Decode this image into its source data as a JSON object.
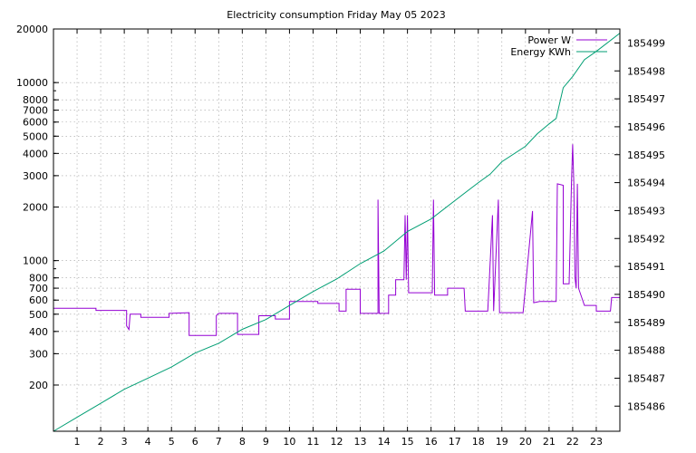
{
  "chart_data": {
    "type": "line",
    "title": "Electricity consumption Friday May 05 2023",
    "xlim": [
      0,
      24
    ],
    "x_ticks": [
      1,
      2,
      3,
      4,
      5,
      6,
      7,
      8,
      9,
      10,
      11,
      12,
      13,
      14,
      15,
      16,
      17,
      18,
      19,
      20,
      21,
      22,
      23
    ],
    "y_left": {
      "scale": "log",
      "range": [
        110,
        20000
      ],
      "ticks": [
        200,
        300,
        400,
        500,
        600,
        700,
        800,
        1000,
        2000,
        3000,
        4000,
        5000,
        6000,
        7000,
        8000,
        10000,
        20000
      ]
    },
    "y_right": {
      "scale": "linear",
      "range": [
        185485.1,
        185499.5
      ],
      "ticks": [
        185486,
        185487,
        185488,
        185489,
        185490,
        185491,
        185492,
        185493,
        185494,
        185495,
        185496,
        185497,
        185498,
        185499
      ]
    },
    "grid": true,
    "legend_position": "top-right",
    "series": [
      {
        "name": "Power W",
        "axis": "left",
        "color": "#9400d3",
        "points": [
          [
            0.0,
            540
          ],
          [
            1.8,
            540
          ],
          [
            1.8,
            525
          ],
          [
            3.1,
            525
          ],
          [
            3.1,
            430
          ],
          [
            3.2,
            410
          ],
          [
            3.25,
            500
          ],
          [
            3.7,
            500
          ],
          [
            3.7,
            480
          ],
          [
            4.9,
            480
          ],
          [
            4.9,
            505
          ],
          [
            5.75,
            510
          ],
          [
            5.75,
            380
          ],
          [
            6.9,
            380
          ],
          [
            6.9,
            490
          ],
          [
            7.0,
            505
          ],
          [
            7.8,
            505
          ],
          [
            7.8,
            385
          ],
          [
            8.7,
            385
          ],
          [
            8.7,
            490
          ],
          [
            9.4,
            490
          ],
          [
            9.4,
            470
          ],
          [
            10.0,
            470
          ],
          [
            10.0,
            590
          ],
          [
            11.2,
            590
          ],
          [
            11.2,
            575
          ],
          [
            12.1,
            575
          ],
          [
            12.1,
            520
          ],
          [
            12.4,
            520
          ],
          [
            12.4,
            690
          ],
          [
            13.0,
            690
          ],
          [
            13.0,
            505
          ],
          [
            13.75,
            505
          ],
          [
            13.75,
            2200
          ],
          [
            13.8,
            505
          ],
          [
            14.2,
            505
          ],
          [
            14.2,
            640
          ],
          [
            14.5,
            640
          ],
          [
            14.5,
            780
          ],
          [
            14.85,
            780
          ],
          [
            14.9,
            1800
          ],
          [
            14.95,
            780
          ],
          [
            15.0,
            1800
          ],
          [
            15.05,
            660
          ],
          [
            16.05,
            660
          ],
          [
            16.1,
            2200
          ],
          [
            16.15,
            640
          ],
          [
            16.7,
            640
          ],
          [
            16.7,
            700
          ],
          [
            17.4,
            700
          ],
          [
            17.45,
            520
          ],
          [
            18.4,
            520
          ],
          [
            18.45,
            700
          ],
          [
            18.6,
            1800
          ],
          [
            18.65,
            520
          ],
          [
            18.85,
            2200
          ],
          [
            18.9,
            510
          ],
          [
            19.9,
            510
          ],
          [
            19.95,
            600
          ],
          [
            20.3,
            1900
          ],
          [
            20.35,
            580
          ],
          [
            20.6,
            590
          ],
          [
            21.3,
            590
          ],
          [
            21.35,
            2700
          ],
          [
            21.6,
            2650
          ],
          [
            21.6,
            740
          ],
          [
            21.85,
            740
          ],
          [
            21.95,
            2750
          ],
          [
            22.0,
            4500
          ],
          [
            22.05,
            2700
          ],
          [
            22.1,
            800
          ],
          [
            22.15,
            700
          ],
          [
            22.2,
            2700
          ],
          [
            22.25,
            700
          ],
          [
            22.5,
            560
          ],
          [
            23.0,
            560
          ],
          [
            23.0,
            520
          ],
          [
            23.6,
            520
          ],
          [
            23.65,
            620
          ],
          [
            24.0,
            620
          ]
        ]
      },
      {
        "name": "Energy KWh",
        "axis": "right",
        "color": "#009e73",
        "points": [
          [
            0.0,
            185485.1
          ],
          [
            1.0,
            185485.6
          ],
          [
            2.0,
            185486.1
          ],
          [
            3.0,
            185486.6
          ],
          [
            4.0,
            185487.0
          ],
          [
            5.0,
            185487.4
          ],
          [
            6.0,
            185487.9
          ],
          [
            7.0,
            185488.25
          ],
          [
            8.0,
            185488.75
          ],
          [
            9.0,
            185489.1
          ],
          [
            10.0,
            185489.6
          ],
          [
            11.0,
            185490.1
          ],
          [
            12.0,
            185490.55
          ],
          [
            13.0,
            185491.1
          ],
          [
            14.0,
            185491.55
          ],
          [
            15.0,
            185492.25
          ],
          [
            16.0,
            185492.7
          ],
          [
            17.0,
            185493.35
          ],
          [
            18.0,
            185494.0
          ],
          [
            18.5,
            185494.3
          ],
          [
            19.0,
            185494.75
          ],
          [
            20.0,
            185495.3
          ],
          [
            20.5,
            185495.75
          ],
          [
            21.0,
            185496.1
          ],
          [
            21.3,
            185496.3
          ],
          [
            21.6,
            185497.4
          ],
          [
            22.0,
            185497.8
          ],
          [
            22.5,
            185498.4
          ],
          [
            23.0,
            185498.7
          ],
          [
            24.0,
            185499.35
          ]
        ]
      }
    ]
  }
}
